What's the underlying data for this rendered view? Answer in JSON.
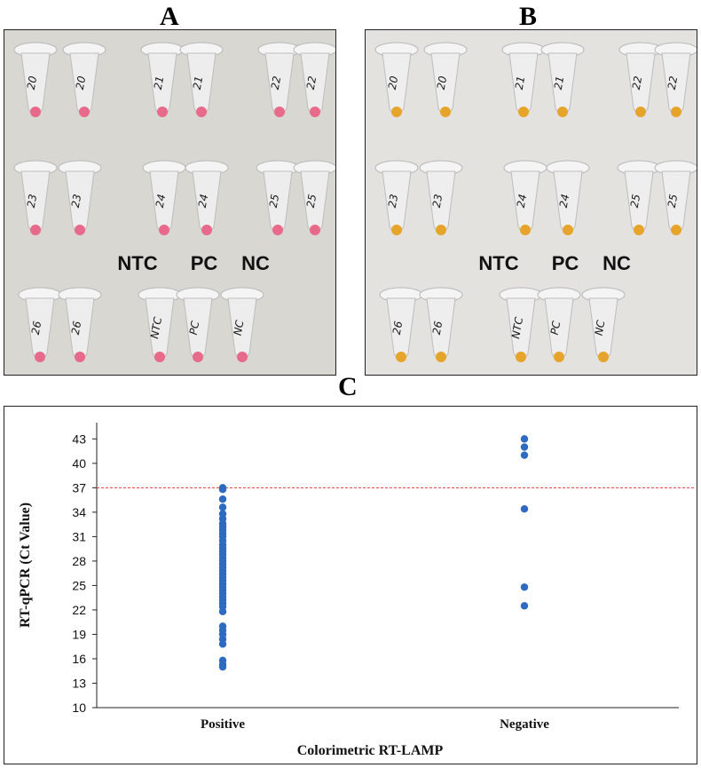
{
  "panels": {
    "a": {
      "letter": "A",
      "reaction_color": "#e76a8a",
      "row_labels": [
        [
          "20",
          "20",
          "21",
          "21",
          "22",
          "22"
        ],
        [
          "23",
          "23",
          "24",
          "24",
          "25",
          "25"
        ],
        [
          "26",
          "26",
          "NTC",
          "PC",
          "NC"
        ]
      ],
      "control_labels": [
        "NTC",
        "PC",
        "NC"
      ]
    },
    "b": {
      "letter": "B",
      "reaction_color": "#e6a52a",
      "row_labels": [
        [
          "20",
          "20",
          "21",
          "21",
          "22",
          "22"
        ],
        [
          "23",
          "23",
          "24",
          "24",
          "25",
          "25"
        ],
        [
          "26",
          "26",
          "NTC",
          "PC",
          "NC"
        ]
      ],
      "control_labels": [
        "NTC",
        "PC",
        "NC"
      ]
    },
    "c": {
      "letter": "C"
    }
  },
  "colors": {
    "points": "#2e6bc0",
    "threshold": "#e33b3b",
    "photo_bg": "#d9d7d2",
    "photo_bg_b": "#e4e2de"
  },
  "chart_data": {
    "type": "scatter",
    "title": "",
    "xlabel": "Colorimetric RT-LAMP",
    "ylabel": "RT-qPCR (Ct Value)",
    "categories": [
      "Positive",
      "Negative"
    ],
    "ylim": [
      10,
      45
    ],
    "yticks": [
      10,
      13,
      16,
      19,
      22,
      25,
      28,
      31,
      34,
      37,
      40,
      43
    ],
    "threshold": 37,
    "grid": false,
    "series": [
      {
        "name": "Positive",
        "category": "Positive",
        "values": [
          37,
          36.8,
          35.6,
          34.6,
          33.8,
          33.2,
          32.6,
          32.2,
          31.8,
          31.4,
          31.0,
          30.5,
          30.0,
          29.6,
          29.2,
          28.8,
          28.4,
          28.0,
          27.6,
          27.2,
          26.8,
          26.4,
          26.0,
          25.6,
          25.2,
          24.8,
          24.4,
          24.0,
          23.6,
          23.2,
          22.8,
          22.4,
          21.8,
          20.0,
          19.5,
          19.0,
          18.4,
          17.8,
          15.8,
          15.3,
          15.0
        ]
      },
      {
        "name": "Negative",
        "category": "Negative",
        "values": [
          43.0,
          42.0,
          41.0,
          34.4,
          24.8,
          22.5
        ]
      }
    ]
  }
}
